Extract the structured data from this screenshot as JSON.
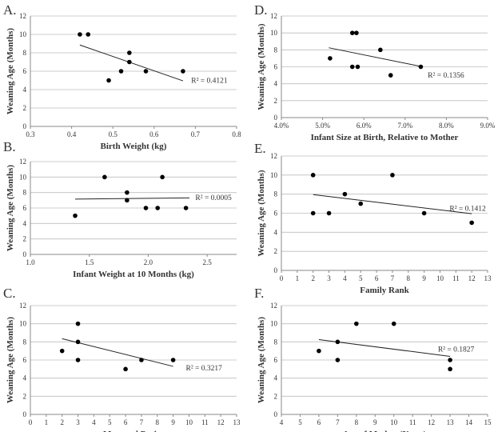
{
  "chart_data": [
    {
      "type": "scatter",
      "panel": "A.",
      "xlabel": "Birth Weight (kg)",
      "ylabel": "Weaning Age (Months)",
      "xlim": [
        0.3,
        0.8
      ],
      "ylim": [
        0,
        12
      ],
      "xticks": [
        0.3,
        0.4,
        0.5,
        0.6,
        0.7,
        0.8
      ],
      "xtick_labels": [
        "0.3",
        "0.4",
        "0.5",
        "0.6",
        "0.7",
        "0.8"
      ],
      "yticks": [
        0,
        2,
        4,
        6,
        8,
        10,
        12
      ],
      "ytick_labels": [
        "0",
        "2",
        "4",
        "6",
        "8",
        "10",
        "12"
      ],
      "points": [
        [
          0.42,
          10
        ],
        [
          0.44,
          10
        ],
        [
          0.49,
          5
        ],
        [
          0.52,
          6
        ],
        [
          0.54,
          7
        ],
        [
          0.54,
          8
        ],
        [
          0.58,
          6
        ],
        [
          0.67,
          6
        ]
      ],
      "trendline": [
        [
          0.42,
          8.85
        ],
        [
          0.67,
          4.95
        ]
      ],
      "r2_label": "R² = 0.4121",
      "r2_pos": [
        0.69,
        5
      ]
    },
    {
      "type": "scatter",
      "panel": "D.",
      "xlabel": "Infant Size at Birth, Relative to Mother",
      "ylabel": "Weaning Age (Months)",
      "xlim": [
        4,
        9
      ],
      "ylim": [
        0,
        12
      ],
      "xticks": [
        4,
        5,
        6,
        7,
        8,
        9
      ],
      "xtick_labels": [
        "4.0%",
        "5.0%",
        "6.0%",
        "7.0%",
        "8.0%",
        "9.0%"
      ],
      "yticks": [
        0,
        2,
        4,
        6,
        8,
        10,
        12
      ],
      "ytick_labels": [
        "0",
        "2",
        "4",
        "6",
        "8",
        "10",
        "12"
      ],
      "points": [
        [
          5.18,
          7
        ],
        [
          5.72,
          10
        ],
        [
          5.82,
          10
        ],
        [
          5.72,
          6
        ],
        [
          5.85,
          6
        ],
        [
          6.4,
          8
        ],
        [
          6.65,
          5
        ],
        [
          7.38,
          6
        ]
      ],
      "trendline": [
        [
          5.15,
          8.25
        ],
        [
          7.38,
          6.05
        ]
      ],
      "r2_label": "R² = 0.1356",
      "r2_pos": [
        7.55,
        5
      ]
    },
    {
      "type": "scatter",
      "panel": "B.",
      "xlabel": "Infant Weight at 10 Months (kg)",
      "ylabel": "Weaning Age (Months)",
      "xlim": [
        1.0,
        2.75
      ],
      "ylim": [
        0,
        12
      ],
      "xticks": [
        1.0,
        1.5,
        2.0,
        2.5
      ],
      "xtick_labels": [
        "1.0",
        "1.5",
        "2.0",
        "2.5"
      ],
      "yticks": [
        0,
        2,
        4,
        6,
        8,
        10,
        12
      ],
      "ytick_labels": [
        "0",
        "2",
        "4",
        "6",
        "8",
        "10",
        "12"
      ],
      "points": [
        [
          1.38,
          5
        ],
        [
          1.63,
          10
        ],
        [
          1.82,
          8
        ],
        [
          1.82,
          7
        ],
        [
          1.98,
          6
        ],
        [
          2.08,
          6
        ],
        [
          2.12,
          10
        ],
        [
          2.32,
          6
        ]
      ],
      "trendline": [
        [
          1.38,
          7.15
        ],
        [
          2.35,
          7.3
        ]
      ],
      "r2_label": "R² = 0.0005",
      "r2_pos": [
        2.4,
        7.35
      ]
    },
    {
      "type": "scatter",
      "panel": "E.",
      "xlabel": "Family Rank",
      "ylabel": "Weaning Age (Months)",
      "xlim": [
        0,
        13
      ],
      "ylim": [
        0,
        12
      ],
      "xticks": [
        0,
        1,
        2,
        3,
        4,
        5,
        6,
        7,
        8,
        9,
        10,
        11,
        12,
        13
      ],
      "xtick_labels": [
        "0",
        "1",
        "2",
        "3",
        "4",
        "5",
        "6",
        "7",
        "8",
        "9",
        "10",
        "11",
        "12",
        "13"
      ],
      "yticks": [
        0,
        2,
        4,
        6,
        8,
        10,
        12
      ],
      "ytick_labels": [
        "0",
        "2",
        "4",
        "6",
        "8",
        "10",
        "12"
      ],
      "points": [
        [
          2,
          10
        ],
        [
          2,
          6
        ],
        [
          3,
          6
        ],
        [
          4,
          8
        ],
        [
          5,
          7
        ],
        [
          7,
          10
        ],
        [
          9,
          6
        ],
        [
          12,
          5
        ]
      ],
      "trendline": [
        [
          2,
          7.95
        ],
        [
          12,
          5.95
        ]
      ],
      "r2_label": "R² = 0.1412",
      "r2_pos": [
        10.6,
        6.5
      ]
    },
    {
      "type": "scatter",
      "panel": "C.",
      "xlabel": "Maternal Parity",
      "ylabel": "Weaning Age (Months)",
      "xlim": [
        0,
        13
      ],
      "ylim": [
        0,
        12
      ],
      "xticks": [
        0,
        1,
        2,
        3,
        4,
        5,
        6,
        7,
        8,
        9,
        10,
        11,
        12,
        13
      ],
      "xtick_labels": [
        "0",
        "1",
        "2",
        "3",
        "4",
        "5",
        "6",
        "7",
        "8",
        "9",
        "10",
        "11",
        "12",
        "13"
      ],
      "yticks": [
        0,
        2,
        4,
        6,
        8,
        10,
        12
      ],
      "ytick_labels": [
        "0",
        "2",
        "4",
        "6",
        "8",
        "10",
        "12"
      ],
      "points": [
        [
          2,
          7
        ],
        [
          3,
          10
        ],
        [
          3,
          8
        ],
        [
          3,
          6
        ],
        [
          6,
          5
        ],
        [
          7,
          6
        ],
        [
          9,
          6
        ]
      ],
      "trendline": [
        [
          2,
          8.35
        ],
        [
          9,
          5.3
        ]
      ],
      "r2_label": "R² = 0.3217",
      "r2_pos": [
        9.8,
        5.1
      ]
    },
    {
      "type": "scatter",
      "panel": "F.",
      "xlabel": "Age of Mother (Years)",
      "ylabel": "Weaning Age (Months)",
      "xlim": [
        4,
        15
      ],
      "ylim": [
        0,
        12
      ],
      "xticks": [
        4,
        5,
        6,
        7,
        8,
        9,
        10,
        11,
        12,
        13,
        14,
        15
      ],
      "xtick_labels": [
        "4",
        "5",
        "6",
        "7",
        "8",
        "9",
        "10",
        "11",
        "12",
        "13",
        "14",
        "15"
      ],
      "yticks": [
        0,
        2,
        4,
        6,
        8,
        10,
        12
      ],
      "ytick_labels": [
        "0",
        "2",
        "4",
        "6",
        "8",
        "10",
        "12"
      ],
      "points": [
        [
          6,
          7
        ],
        [
          7,
          8
        ],
        [
          7,
          6
        ],
        [
          8,
          10
        ],
        [
          10,
          10
        ],
        [
          13,
          6
        ],
        [
          13,
          5
        ]
      ],
      "trendline": [
        [
          6,
          8.25
        ],
        [
          13,
          6.4
        ]
      ],
      "r2_label": "R² = 0.1827",
      "r2_pos": [
        12.35,
        7.2
      ]
    }
  ]
}
